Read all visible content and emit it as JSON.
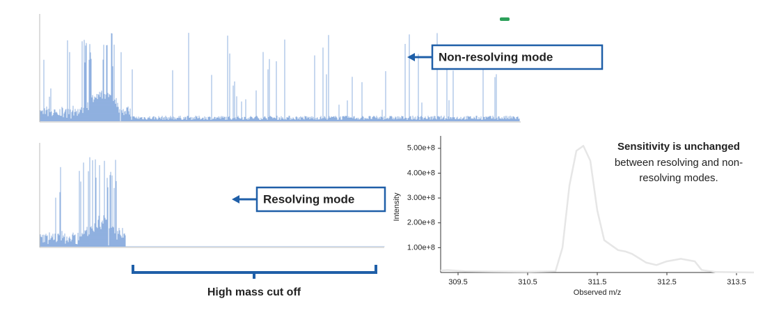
{
  "annotations": {
    "non_resolving": "Non-resolving mode",
    "resolving": "Resolving mode",
    "cutoff": "High mass cut off",
    "sensitivity_title": "Sensitivity is unchanged",
    "sensitivity_body": [
      "between resolving and non-",
      "resolving modes."
    ]
  },
  "chart_data": {
    "type": "line",
    "y_label": "Intensity",
    "x_label": "Observed m/z",
    "color": "#e6e6e6",
    "x": [
      309.25,
      309.35,
      309.6,
      310.0,
      310.5,
      310.9,
      311.0,
      311.1,
      311.2,
      311.3,
      311.4,
      311.5,
      311.6,
      311.8,
      311.9,
      312.0,
      312.2,
      312.35,
      312.5,
      312.7,
      312.9,
      313.0,
      313.2,
      313.75
    ],
    "values": [
      8000000,
      10000000,
      5000000,
      4000000,
      3000000,
      5000000,
      100000000,
      350000000,
      490000000,
      510000000,
      450000000,
      250000000,
      130000000,
      90000000,
      85000000,
      75000000,
      40000000,
      30000000,
      45000000,
      55000000,
      45000000,
      10000000,
      2000000,
      0
    ],
    "xlim": [
      309.25,
      313.75
    ],
    "xticks": [
      309.5,
      310.5,
      311.5,
      312.5,
      313.5
    ],
    "ylim": [
      0,
      550000000
    ],
    "yticks": [
      {
        "value": 100000000,
        "label": "1.00e+8"
      },
      {
        "value": 200000000,
        "label": "2.00e+8"
      },
      {
        "value": 300000000,
        "label": "3.00e+8"
      },
      {
        "value": 400000000,
        "label": "4.00e+8"
      },
      {
        "value": 500000000,
        "label": "5.00e+8"
      }
    ]
  }
}
